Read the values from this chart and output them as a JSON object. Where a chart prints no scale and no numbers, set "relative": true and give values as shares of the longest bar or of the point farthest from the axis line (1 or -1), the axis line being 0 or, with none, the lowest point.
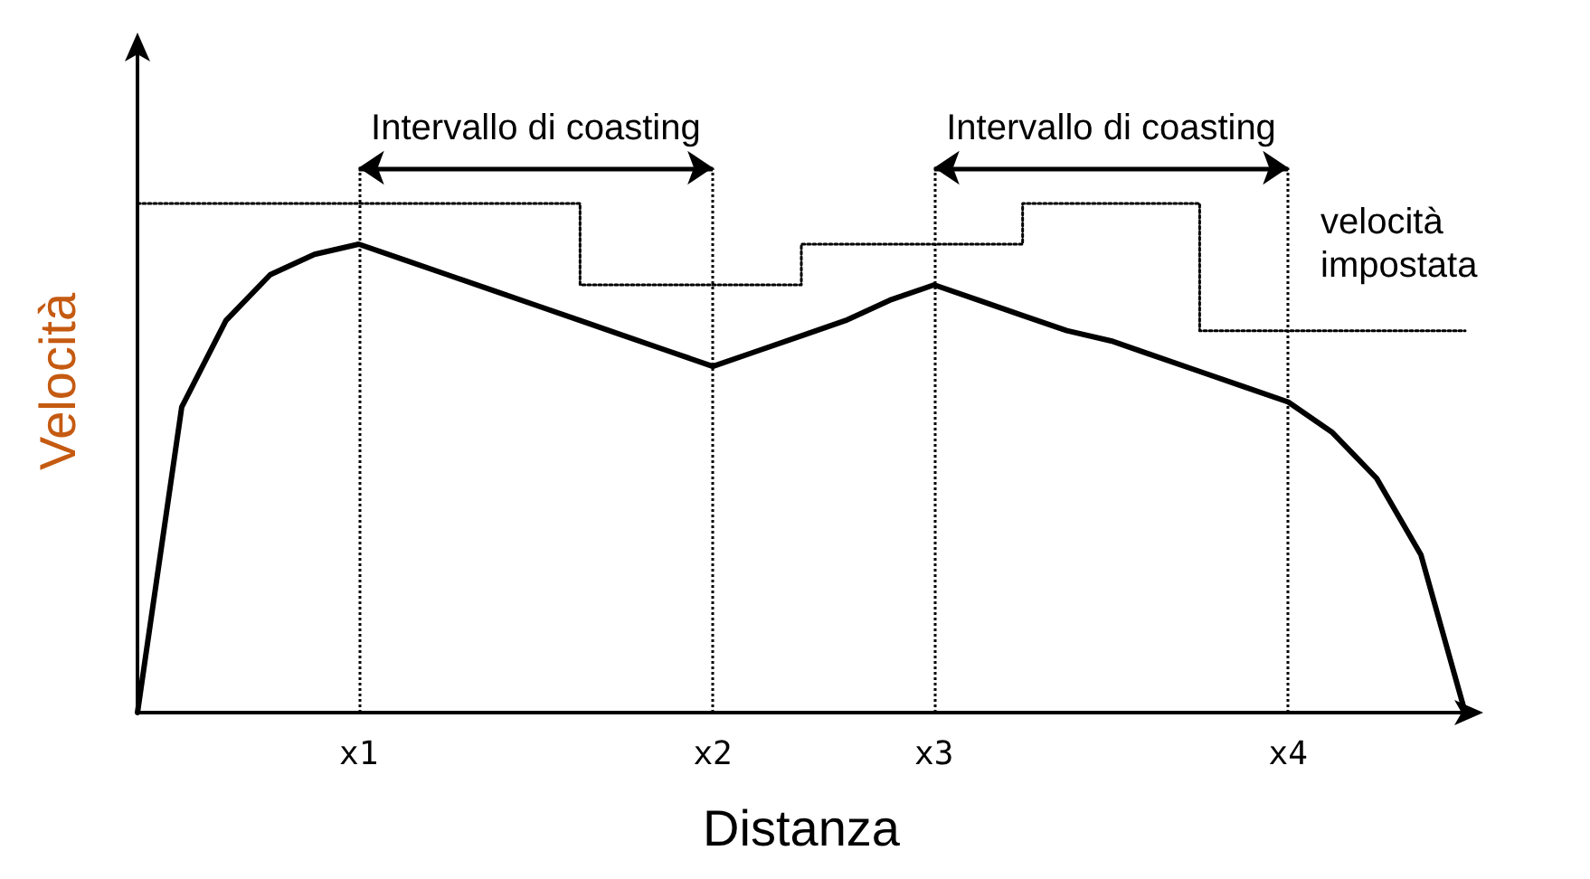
{
  "chart_data": {
    "type": "line",
    "relative": true,
    "xlabel": "Distanza",
    "ylabel": "Velocità",
    "categories": [
      null,
      null,
      null,
      null,
      null,
      "x1",
      null,
      null,
      null,
      null,
      null,
      null,
      null,
      "x2",
      null,
      null,
      null,
      null,
      "x3",
      null,
      null,
      null,
      null,
      null,
      null,
      null,
      "x4",
      null,
      null,
      null,
      null
    ],
    "series": [
      {
        "color": "#000000",
        "line_style": "solid",
        "values": [
          0,
          0.6,
          0.77,
          0.86,
          0.9,
          0.92,
          0.89,
          0.86,
          0.83,
          0.8,
          0.77,
          0.74,
          0.71,
          0.68,
          0.71,
          0.74,
          0.77,
          0.81,
          0.84,
          0.81,
          0.78,
          0.75,
          0.73,
          0.7,
          0.67,
          0.64,
          0.61,
          0.55,
          0.46,
          0.31,
          0
        ]
      },
      {
        "type": "step",
        "name": "velocità impostata",
        "color": "#000000",
        "line_style": "dotted",
        "values": [
          1,
          1,
          1,
          1,
          1,
          1,
          1,
          1,
          1,
          1,
          0.84,
          0.84,
          0.84,
          0.84,
          0.84,
          0.92,
          0.92,
          0.92,
          0.92,
          0.92,
          1,
          1,
          1,
          1,
          0.75,
          0.75,
          0.75,
          0.75,
          0.75,
          0.75,
          0.75
        ]
      }
    ],
    "ref_lines": [
      {
        "axis": "x",
        "value": "x1",
        "line_style": "dotted"
      },
      {
        "axis": "x",
        "value": "x2",
        "line_style": "dotted"
      },
      {
        "axis": "x",
        "value": "x3",
        "line_style": "dotted"
      },
      {
        "axis": "x",
        "value": "x4",
        "line_style": "dotted"
      }
    ],
    "annotations": [
      "Intervallo di coasting",
      "Intervallo di coasting"
    ],
    "grid": false,
    "legend": false,
    "marker": "none"
  }
}
